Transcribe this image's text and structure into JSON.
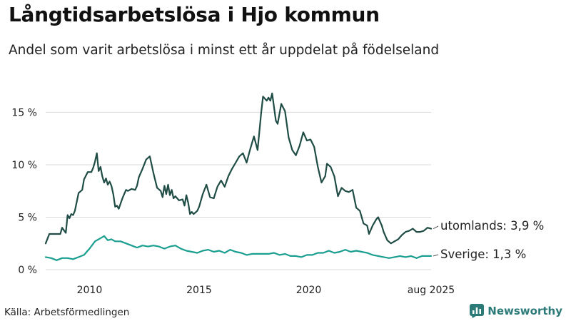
{
  "header": {
    "title": "Långtidsarbetslösa i Hjo kommun",
    "subtitle": "Andel som varit arbetslösa i minst ett år uppdelat på födelseland"
  },
  "footer": {
    "source": "Källa: Arbetsförmedlingen",
    "brand": "Newsworthy"
  },
  "colors": {
    "utomlands": "#1f4d45",
    "sverige": "#1a9e8f",
    "grid": "#d9d9d9",
    "brand": "#2b7a78"
  },
  "chart_data": {
    "type": "line",
    "x_unit": "month",
    "x_start": "2008-01",
    "x_end": "2025-08",
    "y_range": [
      0,
      17
    ],
    "y_ticks": [
      {
        "value": 0,
        "label": "0 %"
      },
      {
        "value": 5,
        "label": "5 %"
      },
      {
        "value": 10,
        "label": "10 %"
      },
      {
        "value": 15,
        "label": "15 %"
      }
    ],
    "x_ticks": [
      {
        "value": "2010-01",
        "label": "2010"
      },
      {
        "value": "2015-01",
        "label": "2015"
      },
      {
        "value": "2020-01",
        "label": "2020"
      },
      {
        "value": "2025-08",
        "label": "aug 2025"
      }
    ],
    "grid": true,
    "series": [
      {
        "key": "utomlands",
        "end_label": "utomlands: 3,9 %",
        "points": [
          [
            "2008-01",
            2.5
          ],
          [
            "2008-03",
            3.4
          ],
          [
            "2008-05",
            3.4
          ],
          [
            "2008-07",
            3.4
          ],
          [
            "2008-09",
            3.4
          ],
          [
            "2008-10",
            4.0
          ],
          [
            "2008-12",
            3.5
          ],
          [
            "2009-01",
            5.2
          ],
          [
            "2009-02",
            4.9
          ],
          [
            "2009-03",
            5.3
          ],
          [
            "2009-04",
            5.2
          ],
          [
            "2009-05",
            5.6
          ],
          [
            "2009-07",
            7.3
          ],
          [
            "2009-09",
            7.6
          ],
          [
            "2009-10",
            8.6
          ],
          [
            "2009-12",
            9.3
          ],
          [
            "2010-02",
            9.3
          ],
          [
            "2010-03",
            9.7
          ],
          [
            "2010-04",
            10.3
          ],
          [
            "2010-05",
            11.1
          ],
          [
            "2010-06",
            9.4
          ],
          [
            "2010-07",
            9.8
          ],
          [
            "2010-08",
            8.9
          ],
          [
            "2010-09",
            8.3
          ],
          [
            "2010-10",
            8.7
          ],
          [
            "2010-11",
            8.1
          ],
          [
            "2010-12",
            8.4
          ],
          [
            "2011-01",
            8.0
          ],
          [
            "2011-02",
            7.2
          ],
          [
            "2011-03",
            6.0
          ],
          [
            "2011-04",
            6.1
          ],
          [
            "2011-05",
            5.8
          ],
          [
            "2011-07",
            6.8
          ],
          [
            "2011-08",
            7.2
          ],
          [
            "2011-09",
            7.6
          ],
          [
            "2011-10",
            7.5
          ],
          [
            "2011-12",
            7.7
          ],
          [
            "2012-02",
            7.6
          ],
          [
            "2012-03",
            8.0
          ],
          [
            "2012-04",
            8.8
          ],
          [
            "2012-06",
            9.6
          ],
          [
            "2012-08",
            10.5
          ],
          [
            "2012-10",
            10.8
          ],
          [
            "2012-12",
            9.2
          ],
          [
            "2013-02",
            7.8
          ],
          [
            "2013-04",
            7.5
          ],
          [
            "2013-05",
            6.9
          ],
          [
            "2013-06",
            8.0
          ],
          [
            "2013-07",
            7.2
          ],
          [
            "2013-08",
            8.1
          ],
          [
            "2013-09",
            7.1
          ],
          [
            "2013-10",
            7.6
          ],
          [
            "2013-11",
            6.8
          ],
          [
            "2013-12",
            7.0
          ],
          [
            "2014-02",
            6.6
          ],
          [
            "2014-04",
            6.7
          ],
          [
            "2014-05",
            6.1
          ],
          [
            "2014-06",
            7.1
          ],
          [
            "2014-07",
            6.4
          ],
          [
            "2014-08",
            5.3
          ],
          [
            "2014-09",
            5.5
          ],
          [
            "2014-10",
            5.3
          ],
          [
            "2014-12",
            5.6
          ],
          [
            "2015-01",
            6.0
          ],
          [
            "2015-03",
            7.2
          ],
          [
            "2015-05",
            8.1
          ],
          [
            "2015-07",
            6.9
          ],
          [
            "2015-09",
            6.8
          ],
          [
            "2015-11",
            7.9
          ],
          [
            "2016-01",
            8.5
          ],
          [
            "2016-03",
            7.9
          ],
          [
            "2016-05",
            8.9
          ],
          [
            "2016-07",
            9.6
          ],
          [
            "2016-09",
            10.2
          ],
          [
            "2016-11",
            10.8
          ],
          [
            "2017-01",
            11.1
          ],
          [
            "2017-03",
            10.2
          ],
          [
            "2017-05",
            11.5
          ],
          [
            "2017-07",
            12.7
          ],
          [
            "2017-09",
            11.4
          ],
          [
            "2017-11",
            15.0
          ],
          [
            "2017-12",
            16.5
          ],
          [
            "2018-02",
            16.1
          ],
          [
            "2018-03",
            16.4
          ],
          [
            "2018-04",
            16.1
          ],
          [
            "2018-05",
            16.8
          ],
          [
            "2018-07",
            14.2
          ],
          [
            "2018-08",
            13.9
          ],
          [
            "2018-10",
            15.8
          ],
          [
            "2018-12",
            15.1
          ],
          [
            "2019-02",
            12.6
          ],
          [
            "2019-04",
            11.4
          ],
          [
            "2019-06",
            10.9
          ],
          [
            "2019-08",
            11.8
          ],
          [
            "2019-10",
            13.1
          ],
          [
            "2019-12",
            12.3
          ],
          [
            "2020-02",
            12.4
          ],
          [
            "2020-04",
            11.7
          ],
          [
            "2020-06",
            9.8
          ],
          [
            "2020-08",
            8.3
          ],
          [
            "2020-10",
            8.9
          ],
          [
            "2020-11",
            10.1
          ],
          [
            "2021-01",
            9.8
          ],
          [
            "2021-03",
            8.9
          ],
          [
            "2021-05",
            7.0
          ],
          [
            "2021-07",
            7.8
          ],
          [
            "2021-09",
            7.5
          ],
          [
            "2021-11",
            7.4
          ],
          [
            "2022-01",
            7.6
          ],
          [
            "2022-03",
            5.9
          ],
          [
            "2022-05",
            5.6
          ],
          [
            "2022-07",
            4.4
          ],
          [
            "2022-09",
            4.2
          ],
          [
            "2022-10",
            3.4
          ],
          [
            "2022-12",
            4.2
          ],
          [
            "2023-02",
            4.8
          ],
          [
            "2023-03",
            5.0
          ],
          [
            "2023-05",
            4.2
          ],
          [
            "2023-06",
            3.6
          ],
          [
            "2023-08",
            2.8
          ],
          [
            "2023-10",
            2.5
          ],
          [
            "2023-12",
            2.7
          ],
          [
            "2024-02",
            2.9
          ],
          [
            "2024-04",
            3.3
          ],
          [
            "2024-06",
            3.6
          ],
          [
            "2024-08",
            3.7
          ],
          [
            "2024-10",
            3.9
          ],
          [
            "2024-12",
            3.6
          ],
          [
            "2025-02",
            3.6
          ],
          [
            "2025-04",
            3.7
          ],
          [
            "2025-06",
            4.0
          ],
          [
            "2025-08",
            3.9
          ]
        ]
      },
      {
        "key": "sverige",
        "end_label": "Sverige: 1,3 %",
        "points": [
          [
            "2008-01",
            1.2
          ],
          [
            "2008-04",
            1.1
          ],
          [
            "2008-07",
            0.9
          ],
          [
            "2008-10",
            1.1
          ],
          [
            "2009-01",
            1.1
          ],
          [
            "2009-04",
            1.0
          ],
          [
            "2009-07",
            1.2
          ],
          [
            "2009-10",
            1.4
          ],
          [
            "2010-01",
            2.0
          ],
          [
            "2010-04",
            2.7
          ],
          [
            "2010-07",
            3.0
          ],
          [
            "2010-09",
            3.2
          ],
          [
            "2010-11",
            2.8
          ],
          [
            "2011-01",
            2.9
          ],
          [
            "2011-03",
            2.7
          ],
          [
            "2011-06",
            2.7
          ],
          [
            "2011-09",
            2.5
          ],
          [
            "2011-12",
            2.3
          ],
          [
            "2012-03",
            2.1
          ],
          [
            "2012-06",
            2.3
          ],
          [
            "2012-09",
            2.2
          ],
          [
            "2012-12",
            2.3
          ],
          [
            "2013-03",
            2.2
          ],
          [
            "2013-06",
            2.0
          ],
          [
            "2013-09",
            2.2
          ],
          [
            "2013-12",
            2.3
          ],
          [
            "2014-03",
            2.0
          ],
          [
            "2014-06",
            1.8
          ],
          [
            "2014-09",
            1.7
          ],
          [
            "2014-12",
            1.6
          ],
          [
            "2015-03",
            1.8
          ],
          [
            "2015-06",
            1.9
          ],
          [
            "2015-09",
            1.7
          ],
          [
            "2015-12",
            1.8
          ],
          [
            "2016-03",
            1.6
          ],
          [
            "2016-06",
            1.9
          ],
          [
            "2016-09",
            1.7
          ],
          [
            "2016-12",
            1.6
          ],
          [
            "2017-03",
            1.4
          ],
          [
            "2017-06",
            1.5
          ],
          [
            "2017-09",
            1.5
          ],
          [
            "2017-12",
            1.5
          ],
          [
            "2018-03",
            1.5
          ],
          [
            "2018-06",
            1.6
          ],
          [
            "2018-09",
            1.4
          ],
          [
            "2018-12",
            1.5
          ],
          [
            "2019-03",
            1.3
          ],
          [
            "2019-06",
            1.3
          ],
          [
            "2019-09",
            1.2
          ],
          [
            "2019-12",
            1.4
          ],
          [
            "2020-03",
            1.4
          ],
          [
            "2020-06",
            1.6
          ],
          [
            "2020-09",
            1.6
          ],
          [
            "2020-12",
            1.8
          ],
          [
            "2021-03",
            1.6
          ],
          [
            "2021-06",
            1.7
          ],
          [
            "2021-09",
            1.9
          ],
          [
            "2021-12",
            1.7
          ],
          [
            "2022-03",
            1.8
          ],
          [
            "2022-06",
            1.7
          ],
          [
            "2022-09",
            1.6
          ],
          [
            "2022-12",
            1.4
          ],
          [
            "2023-03",
            1.3
          ],
          [
            "2023-06",
            1.2
          ],
          [
            "2023-09",
            1.1
          ],
          [
            "2023-12",
            1.2
          ],
          [
            "2024-03",
            1.3
          ],
          [
            "2024-06",
            1.2
          ],
          [
            "2024-09",
            1.3
          ],
          [
            "2024-12",
            1.1
          ],
          [
            "2025-03",
            1.3
          ],
          [
            "2025-06",
            1.3
          ],
          [
            "2025-08",
            1.3
          ]
        ]
      }
    ]
  }
}
